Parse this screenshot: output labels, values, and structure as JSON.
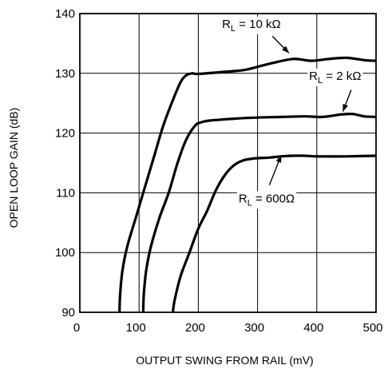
{
  "chart_data": {
    "type": "line",
    "title": "",
    "xlabel": "OUTPUT SWING FROM RAIL (mV)",
    "ylabel": "OPEN LOOP GAIN (dB)",
    "xlim": [
      0,
      500
    ],
    "ylim": [
      90,
      140
    ],
    "xticks": [
      0,
      100,
      200,
      300,
      400,
      500
    ],
    "yticks": [
      90,
      100,
      110,
      120,
      130,
      140
    ],
    "grid": true,
    "colors": {
      "line": "#000000",
      "grid": "#000000",
      "background": "#ffffff"
    },
    "series": [
      {
        "name": "10 kΩ",
        "x": [
          67,
          68,
          72,
          80,
          95,
          110,
          125,
          140,
          155,
          170,
          180,
          190,
          200,
          250,
          280,
          320,
          360,
          390,
          420,
          450,
          480,
          500
        ],
        "y": [
          90,
          93,
          97,
          101,
          106,
          111,
          116,
          121,
          125,
          128.5,
          129.7,
          130,
          129.9,
          130.3,
          130.6,
          131.6,
          132.4,
          132.1,
          132.4,
          132.6,
          132.2,
          132.1
        ]
      },
      {
        "name": "2 kΩ",
        "x": [
          107,
          108,
          112,
          120,
          135,
          150,
          165,
          180,
          195,
          205,
          220,
          260,
          300,
          340,
          380,
          410,
          440,
          460,
          480,
          500
        ],
        "y": [
          90,
          93,
          97,
          101,
          106,
          110,
          115,
          119,
          121.3,
          121.8,
          122.1,
          122.4,
          122.6,
          122.7,
          122.8,
          122.7,
          123.1,
          123.2,
          122.8,
          122.7
        ]
      },
      {
        "name": "600Ω",
        "x": [
          157,
          160,
          170,
          185,
          200,
          215,
          230,
          245,
          260,
          275,
          290,
          300,
          320,
          340,
          360,
          380,
          400,
          450,
          500
        ],
        "y": [
          90,
          92,
          96,
          100,
          104,
          107,
          110.5,
          113,
          114.6,
          115.4,
          115.7,
          115.8,
          115.9,
          116.1,
          116.2,
          116.2,
          116.1,
          116.1,
          116.2
        ]
      }
    ],
    "annotations": [
      {
        "label_main": "R",
        "label_sub": "L",
        "label_rest": " = 10 kΩ",
        "text_x": 240,
        "text_y": 137.6,
        "arrow_from": [
          325,
          136.2
        ],
        "arrow_to": [
          353,
          133.4
        ]
      },
      {
        "label_main": "R",
        "label_sub": "L",
        "label_rest": " = 2 kΩ",
        "text_x": 387,
        "text_y": 128.9,
        "arrow_from": [
          458,
          127.2
        ],
        "arrow_to": [
          444,
          123.6
        ]
      },
      {
        "label_main": "R",
        "label_sub": "L",
        "label_rest": " = 600Ω",
        "text_x": 268,
        "text_y": 108.4,
        "arrow_from": [
          320,
          111.3
        ],
        "arrow_to": [
          340,
          116.3
        ]
      }
    ]
  }
}
